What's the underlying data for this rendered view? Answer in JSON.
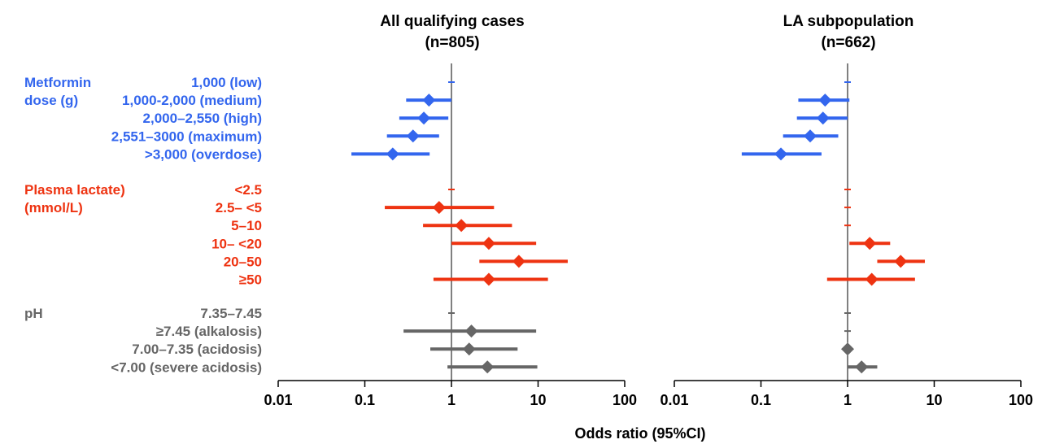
{
  "chart_data": {
    "type": "forest",
    "scale": "log",
    "xlim": [
      0.01,
      100
    ],
    "xticks": [
      "0.01",
      "0.1",
      "1",
      "10",
      "100"
    ],
    "xlabel": "Odds ratio (95%CI)",
    "reference_line": 1,
    "panels": [
      {
        "title_line1": "All qualifying cases",
        "title_line2": "(n=805)"
      },
      {
        "title_line1": "LA subpopulation",
        "title_line2": "(n=662)"
      }
    ],
    "groups": [
      {
        "label_line1": "Metformin",
        "label_line2": "dose (g)",
        "color": "#3366ee",
        "rows": [
          {
            "label": "1,000 (low)",
            "ref": true,
            "values": [
              {
                "or": 1,
                "lo": 1,
                "hi": 1
              },
              {
                "or": 1,
                "lo": 1,
                "hi": 1
              }
            ]
          },
          {
            "label": "1,000-2,000 (medium)",
            "values": [
              {
                "or": 0.55,
                "lo": 0.3,
                "hi": 1.0
              },
              {
                "or": 0.55,
                "lo": 0.27,
                "hi": 1.05
              }
            ]
          },
          {
            "label": "2,000–2,550 (high)",
            "values": [
              {
                "or": 0.48,
                "lo": 0.25,
                "hi": 0.92
              },
              {
                "or": 0.52,
                "lo": 0.26,
                "hi": 1.0
              }
            ]
          },
          {
            "label": "2,551–3000 (maximum)",
            "values": [
              {
                "or": 0.36,
                "lo": 0.18,
                "hi": 0.72
              },
              {
                "or": 0.37,
                "lo": 0.18,
                "hi": 0.78
              }
            ]
          },
          {
            "label": ">3,000 (overdose)",
            "values": [
              {
                "or": 0.21,
                "lo": 0.07,
                "hi": 0.56
              },
              {
                "or": 0.17,
                "lo": 0.06,
                "hi": 0.5
              }
            ]
          }
        ]
      },
      {
        "label_line1": "Plasma lactate)",
        "label_line2": "(mmol/L)",
        "color": "#ee3311",
        "rows": [
          {
            "label": "<2.5",
            "ref": true,
            "values": [
              {
                "or": 1,
                "lo": 1,
                "hi": 1
              },
              {
                "or": 1,
                "lo": 1,
                "hi": 1
              }
            ]
          },
          {
            "label": "2.5– <5",
            "values": [
              {
                "or": 0.72,
                "lo": 0.17,
                "hi": 3.1
              },
              {
                "ref": true
              }
            ]
          },
          {
            "label": "5–10",
            "values": [
              {
                "or": 1.3,
                "lo": 0.47,
                "hi": 5.0
              },
              {
                "ref": true
              }
            ]
          },
          {
            "label": "10– <20",
            "values": [
              {
                "or": 2.7,
                "lo": 1.0,
                "hi": 9.5
              },
              {
                "or": 1.8,
                "lo": 1.05,
                "hi": 3.1
              }
            ]
          },
          {
            "label": "20–50",
            "values": [
              {
                "or": 6.0,
                "lo": 2.1,
                "hi": 22
              },
              {
                "or": 4.1,
                "lo": 2.2,
                "hi": 7.8
              }
            ]
          },
          {
            "label": "≥50",
            "values": [
              {
                "or": 2.7,
                "lo": 0.62,
                "hi": 13
              },
              {
                "or": 1.9,
                "lo": 0.58,
                "hi": 6.0
              }
            ]
          }
        ]
      },
      {
        "label_line1": "pH",
        "label_line2": "",
        "color": "#666666",
        "rows": [
          {
            "label": "7.35–7.45",
            "ref": true,
            "values": [
              {
                "or": 1,
                "lo": 1,
                "hi": 1
              },
              {
                "or": 1,
                "lo": 1,
                "hi": 1
              }
            ]
          },
          {
            "label": "≥7.45 (alkalosis)",
            "values": [
              {
                "or": 1.7,
                "lo": 0.28,
                "hi": 9.5
              },
              {
                "ref": true
              }
            ]
          },
          {
            "label": "7.00–7.35 (acidosis)",
            "values": [
              {
                "or": 1.6,
                "lo": 0.57,
                "hi": 5.8
              },
              {
                "or": 1.0,
                "lo": 1.0,
                "hi": 1.0
              }
            ]
          },
          {
            "label": "<7.00 (severe acidosis)",
            "values": [
              {
                "or": 2.6,
                "lo": 0.9,
                "hi": 9.8
              },
              {
                "or": 1.45,
                "lo": 1.0,
                "hi": 2.2
              }
            ]
          }
        ]
      }
    ]
  }
}
